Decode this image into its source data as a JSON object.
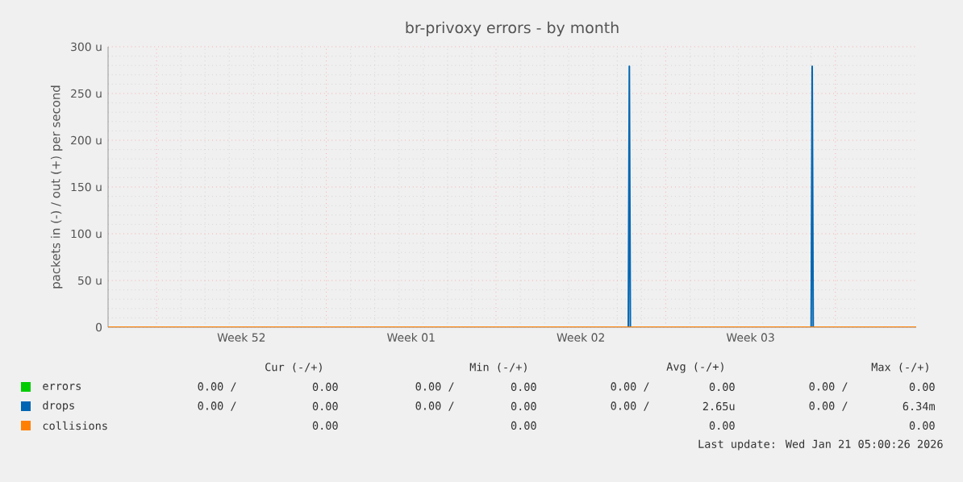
{
  "chart_data": {
    "type": "line",
    "title": "br-privoxy errors - by month",
    "ylabel": "packets in (-) / out (+) per second",
    "xlim": [
      "2025-12-20",
      "2026-01-22T08:00"
    ],
    "xticks": [
      {
        "value": "2025-12-22",
        "label": null
      },
      {
        "value": "2025-12-25T12:00",
        "label": "Week 52"
      },
      {
        "value": "2025-12-29",
        "label": null
      },
      {
        "value": "2026-01-01T12:00",
        "label": "Week 01"
      },
      {
        "value": "2026-01-05",
        "label": null
      },
      {
        "value": "2026-01-08T12:00",
        "label": "Week 02"
      },
      {
        "value": "2026-01-12",
        "label": null
      },
      {
        "value": "2026-01-15T12:00",
        "label": "Week 03"
      },
      {
        "value": "2026-01-19",
        "label": null
      }
    ],
    "ylim": [
      0,
      300
    ],
    "yticks": [
      0,
      {
        "value": 50,
        "label": "50 u"
      },
      {
        "value": 100,
        "label": "100 u"
      },
      {
        "value": 150,
        "label": "150 u"
      },
      {
        "value": 200,
        "label": "200 u"
      },
      {
        "value": 250,
        "label": "250 u"
      },
      {
        "value": 300,
        "label": "300 u"
      }
    ],
    "grid": true,
    "legend": "bottom left",
    "series": [
      {
        "name": "errors",
        "color": "#00cc00"
      },
      {
        "name": "drops",
        "color": "#0066b3",
        "x": [
          "2025-12-20",
          "2026-01-10T11:00",
          "2026-01-10T12:00",
          "2026-01-10T13:00",
          "2026-01-18T00:00",
          "2026-01-18T01:00",
          "2026-01-18T02:00",
          "2026-01-22T08:00"
        ],
        "values": [
          0,
          0,
          279,
          0,
          0,
          279,
          0,
          0
        ]
      },
      {
        "name": "collisions",
        "color": "#ff8000",
        "x": [
          "2025-12-20",
          "2026-01-22T08:00"
        ],
        "values": [
          0,
          0
        ]
      }
    ],
    "annotations": [
      "Cur (-/+)",
      "Min (-/+)",
      "Avg (-/+)",
      "Max (-/+)",
      "0.00 /",
      "0.00",
      "0.00 /",
      "0.00",
      "0.00 /",
      "0.00",
      "0.00 /",
      "0.00",
      "0.00 /",
      "0.00",
      "0.00 /",
      "0.00",
      "0.00 /",
      "2.65u",
      "0.00 /",
      "6.34m",
      "0.00",
      "0.00",
      "0.00",
      "0.00",
      "Last update: Wed Jan 21 05:00:26 2026"
    ]
  }
}
